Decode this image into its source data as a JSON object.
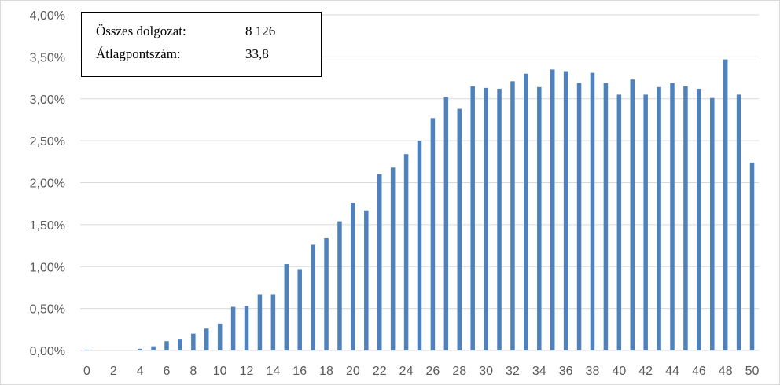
{
  "chart_data": {
    "type": "bar",
    "color": "#4f81bd",
    "gridlines": true,
    "ylim": [
      0,
      4
    ],
    "y_ticks": [
      "0,00%",
      "0,50%",
      "1,00%",
      "1,50%",
      "2,00%",
      "2,50%",
      "3,00%",
      "3,50%",
      "4,00%"
    ],
    "x_ticks": [
      "0",
      "2",
      "4",
      "6",
      "8",
      "10",
      "12",
      "14",
      "16",
      "18",
      "20",
      "22",
      "24",
      "26",
      "28",
      "30",
      "32",
      "34",
      "36",
      "38",
      "40",
      "42",
      "44",
      "46",
      "48",
      "50"
    ],
    "x": [
      0,
      1,
      2,
      3,
      4,
      5,
      6,
      7,
      8,
      9,
      10,
      11,
      12,
      13,
      14,
      15,
      16,
      17,
      18,
      19,
      20,
      21,
      22,
      23,
      24,
      25,
      26,
      27,
      28,
      29,
      30,
      31,
      32,
      33,
      34,
      35,
      36,
      37,
      38,
      39,
      40,
      41,
      42,
      43,
      44,
      45,
      46,
      47,
      48,
      49,
      50
    ],
    "values": [
      0.01,
      0,
      0,
      0,
      0.02,
      0.05,
      0.11,
      0.13,
      0.2,
      0.26,
      0.32,
      0.52,
      0.53,
      0.67,
      0.67,
      1.03,
      0.97,
      1.26,
      1.34,
      1.54,
      1.76,
      1.67,
      2.1,
      2.18,
      2.34,
      2.5,
      2.77,
      3.02,
      2.88,
      3.15,
      3.13,
      3.12,
      3.21,
      3.3,
      3.14,
      3.35,
      3.33,
      3.19,
      3.31,
      3.19,
      3.05,
      3.23,
      3.05,
      3.14,
      3.19,
      3.15,
      3.12,
      3.01,
      3.47,
      3.05,
      2.24
    ]
  },
  "info_box": {
    "rows": [
      {
        "label": "Összes dolgozat:",
        "value": "8 126"
      },
      {
        "label": "Átlagpontszám:",
        "value": "33,8"
      }
    ]
  }
}
